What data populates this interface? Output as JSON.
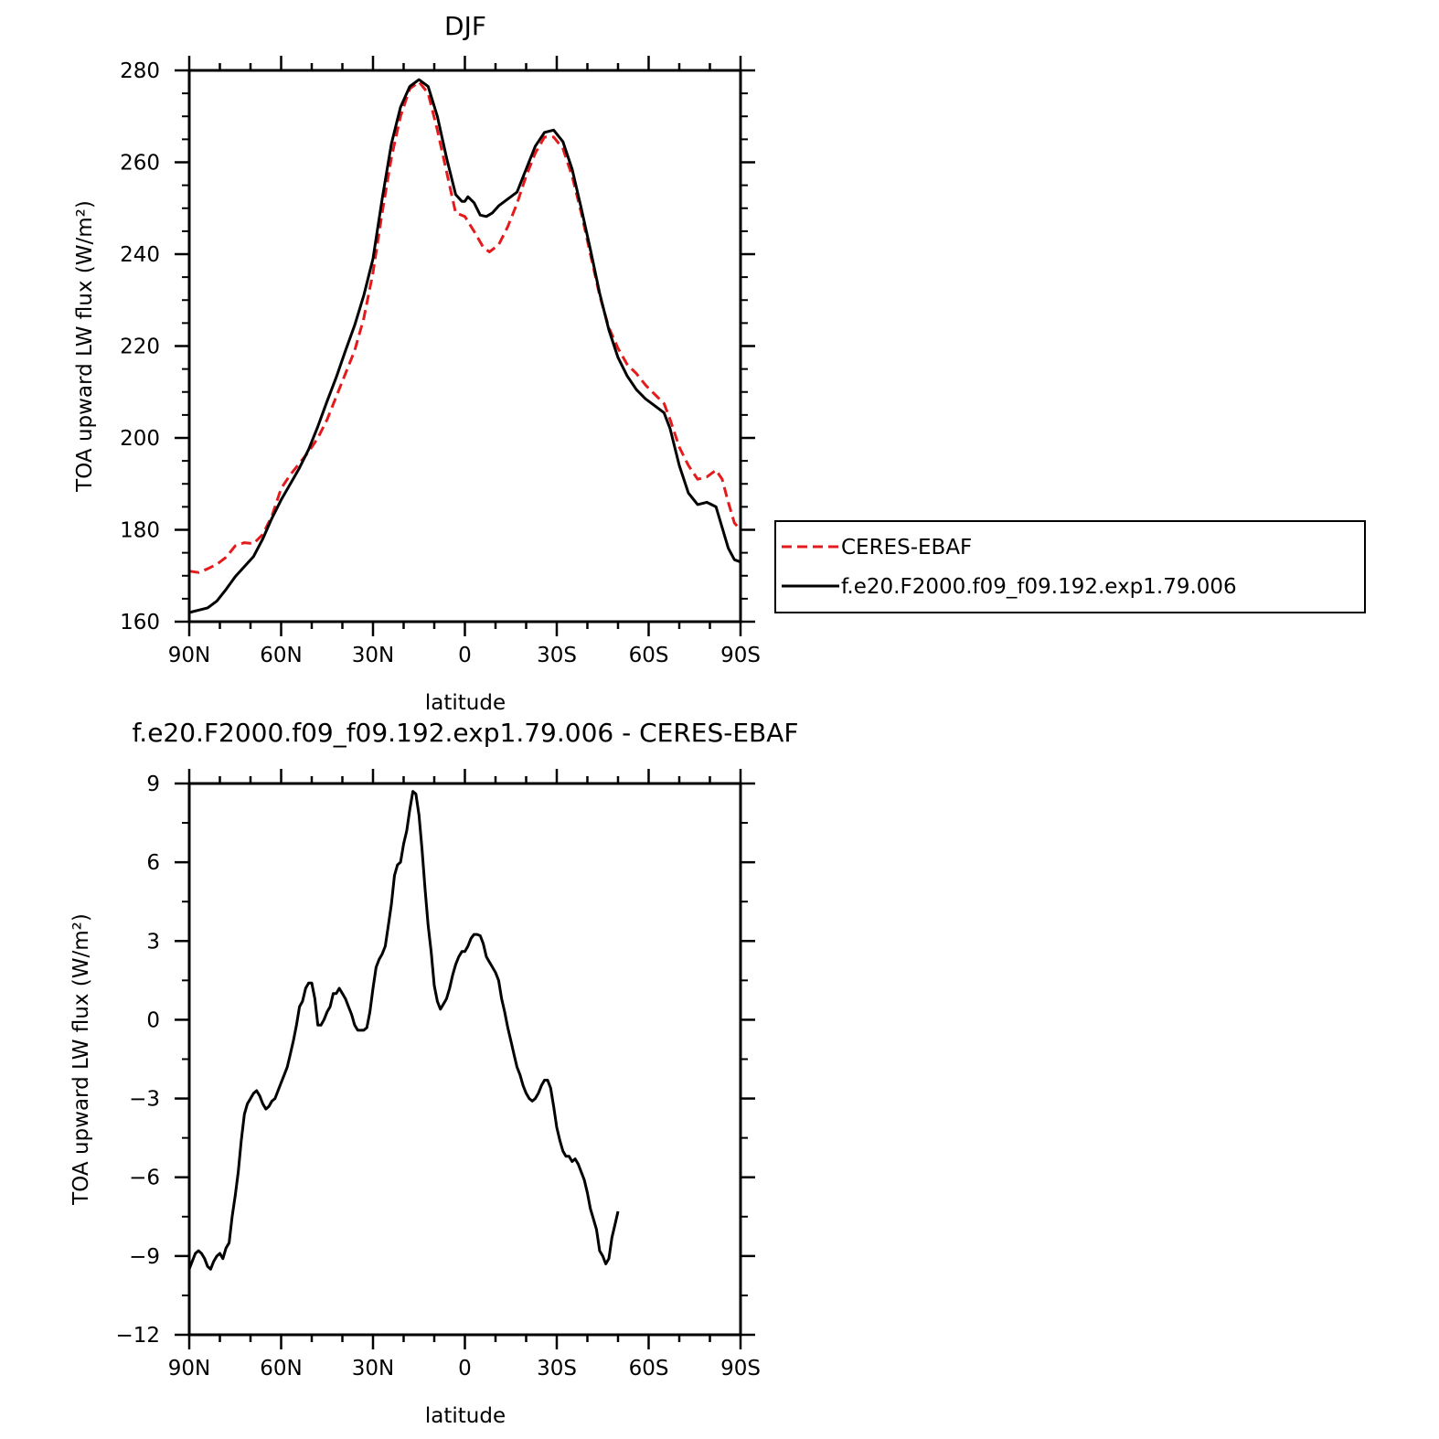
{
  "chart_data": [
    {
      "type": "line",
      "title": "DJF",
      "xlabel": "latitude",
      "ylabel": "TOA upward LW flux (W/m²)",
      "xlim": [
        90,
        -90
      ],
      "ylim": [
        160,
        280
      ],
      "x_tick_values": [
        90,
        60,
        30,
        0,
        -30,
        -60,
        -90
      ],
      "x_tick_labels": [
        "90N",
        "60N",
        "30N",
        "0",
        "30S",
        "60S",
        "90S"
      ],
      "y_ticks": [
        160,
        180,
        200,
        220,
        240,
        260,
        280
      ],
      "legend_position": "right",
      "grid": false,
      "series": [
        {
          "name": "CERES-EBAF",
          "color": "#e41a1c",
          "dash": "dashed",
          "points": [
            [
              90,
              171
            ],
            [
              87,
              170.7
            ],
            [
              84,
              171.5
            ],
            [
              81,
              172.5
            ],
            [
              78,
              174
            ],
            [
              75,
              176.5
            ],
            [
              72,
              177.2
            ],
            [
              69,
              177
            ],
            [
              66,
              179
            ],
            [
              63,
              183
            ],
            [
              60,
              189
            ],
            [
              57,
              192
            ],
            [
              54,
              194.5
            ],
            [
              51,
              197
            ],
            [
              48,
              200
            ],
            [
              45,
              204
            ],
            [
              42,
              209
            ],
            [
              39,
              214
            ],
            [
              36,
              219
            ],
            [
              33,
              226
            ],
            [
              30,
              236
            ],
            [
              27,
              249
            ],
            [
              24,
              261
            ],
            [
              21,
              270
            ],
            [
              18,
              276
            ],
            [
              15,
              277.5
            ],
            [
              12,
              275
            ],
            [
              9,
              267
            ],
            [
              6,
              258
            ],
            [
              3,
              249
            ],
            [
              0,
              248.2
            ],
            [
              -3,
              245
            ],
            [
              -6,
              241.5
            ],
            [
              -8,
              240.5
            ],
            [
              -11,
              242
            ],
            [
              -14,
              246
            ],
            [
              -17,
              251
            ],
            [
              -20,
              257
            ],
            [
              -23,
              262
            ],
            [
              -26,
              265.5
            ],
            [
              -29,
              265.5
            ],
            [
              -32,
              263
            ],
            [
              -35,
              257
            ],
            [
              -38,
              249
            ],
            [
              -41,
              240
            ],
            [
              -44,
              231
            ],
            [
              -47,
              224
            ],
            [
              -50,
              219.5
            ],
            [
              -53,
              216
            ],
            [
              -56,
              214
            ],
            [
              -59,
              211.5
            ],
            [
              -62,
              209.5
            ],
            [
              -65,
              207.5
            ],
            [
              -67,
              204
            ],
            [
              -70,
              198
            ],
            [
              -73,
              194
            ],
            [
              -76,
              191
            ],
            [
              -79,
              191.5
            ],
            [
              -82,
              193
            ],
            [
              -84,
              191
            ],
            [
              -86,
              186
            ],
            [
              -88,
              181.5
            ],
            [
              -90,
              180
            ]
          ]
        },
        {
          "name": "f.e20.F2000.f09_f09.192.exp1.79.006",
          "color": "#000000",
          "dash": "solid",
          "points": [
            [
              90,
              162
            ],
            [
              87,
              162.5
            ],
            [
              84,
              163
            ],
            [
              81,
              164.5
            ],
            [
              78,
              167
            ],
            [
              75,
              169.8
            ],
            [
              72,
              172
            ],
            [
              69,
              174.2
            ],
            [
              66,
              178
            ],
            [
              63,
              182.5
            ],
            [
              60,
              186.5
            ],
            [
              57,
              190
            ],
            [
              54,
              193.5
            ],
            [
              51,
              197.5
            ],
            [
              48,
              202.5
            ],
            [
              45,
              208
            ],
            [
              42,
              213.2
            ],
            [
              39,
              219
            ],
            [
              36,
              224.5
            ],
            [
              33,
              231
            ],
            [
              30,
              239
            ],
            [
              27,
              252
            ],
            [
              24,
              264
            ],
            [
              21,
              272
            ],
            [
              18,
              276.5
            ],
            [
              15,
              278
            ],
            [
              12,
              276.5
            ],
            [
              9,
              270
            ],
            [
              6,
              261
            ],
            [
              3,
              253
            ],
            [
              1,
              251.5
            ],
            [
              0,
              251.5
            ],
            [
              -1,
              252.5
            ],
            [
              -3,
              251.2
            ],
            [
              -5,
              248.5
            ],
            [
              -7,
              248.2
            ],
            [
              -9,
              249
            ],
            [
              -11,
              250.5
            ],
            [
              -14,
              252
            ],
            [
              -17,
              253.5
            ],
            [
              -20,
              258.5
            ],
            [
              -23,
              263.5
            ],
            [
              -26,
              266.5
            ],
            [
              -29,
              267
            ],
            [
              -32,
              264.5
            ],
            [
              -35,
              258.5
            ],
            [
              -38,
              250
            ],
            [
              -41,
              241
            ],
            [
              -44,
              231.5
            ],
            [
              -47,
              223.5
            ],
            [
              -50,
              217.5
            ],
            [
              -53,
              213.5
            ],
            [
              -56,
              210.5
            ],
            [
              -59,
              208.5
            ],
            [
              -62,
              207
            ],
            [
              -65,
              205.5
            ],
            [
              -67,
              202
            ],
            [
              -70,
              194
            ],
            [
              -73,
              188
            ],
            [
              -76,
              185.5
            ],
            [
              -79,
              186
            ],
            [
              -82,
              185
            ],
            [
              -84,
              180.5
            ],
            [
              -86,
              176
            ],
            [
              -88,
              173.5
            ],
            [
              -90,
              173
            ]
          ]
        }
      ]
    },
    {
      "type": "line",
      "title": "f.e20.F2000.f09_f09.192.exp1.79.006 - CERES-EBAF",
      "xlabel": "latitude",
      "ylabel": "TOA upward LW flux (W/m²)",
      "xlim": [
        90,
        -90
      ],
      "ylim": [
        -12,
        9
      ],
      "x_tick_values": [
        90,
        60,
        30,
        0,
        -30,
        -60,
        -90
      ],
      "x_tick_labels": [
        "90N",
        "60N",
        "30N",
        "0",
        "30S",
        "60S",
        "90S"
      ],
      "y_ticks": [
        -12,
        -9,
        -6,
        -3,
        0,
        3,
        6,
        9
      ],
      "grid": false,
      "series": [
        {
          "color": "#000000",
          "dash": "solid",
          "points": [
            [
              90,
              -9.5
            ],
            [
              89,
              -9.2
            ],
            [
              88,
              -8.9
            ],
            [
              87,
              -8.8
            ],
            [
              86,
              -8.9
            ],
            [
              85,
              -9.1
            ],
            [
              84,
              -9.4
            ],
            [
              83,
              -9.5
            ],
            [
              82,
              -9.2
            ],
            [
              81,
              -9.0
            ],
            [
              80,
              -8.9
            ],
            [
              79,
              -9.1
            ],
            [
              78,
              -8.7
            ],
            [
              77,
              -8.5
            ],
            [
              76,
              -7.5
            ],
            [
              75,
              -6.7
            ],
            [
              74,
              -5.8
            ],
            [
              73,
              -4.6
            ],
            [
              72,
              -3.6
            ],
            [
              71,
              -3.2
            ],
            [
              70,
              -3.0
            ],
            [
              69,
              -2.8
            ],
            [
              68,
              -2.7
            ],
            [
              67,
              -2.9
            ],
            [
              66,
              -3.2
            ],
            [
              65,
              -3.4
            ],
            [
              64,
              -3.3
            ],
            [
              63,
              -3.1
            ],
            [
              62,
              -3.0
            ],
            [
              61,
              -2.7
            ],
            [
              60,
              -2.4
            ],
            [
              59,
              -2.1
            ],
            [
              58,
              -1.8
            ],
            [
              57,
              -1.3
            ],
            [
              56,
              -0.8
            ],
            [
              55,
              -0.2
            ],
            [
              54,
              0.5
            ],
            [
              53,
              0.7
            ],
            [
              52,
              1.2
            ],
            [
              51,
              1.4
            ],
            [
              50,
              1.4
            ],
            [
              49,
              0.8
            ],
            [
              48,
              -0.2
            ],
            [
              47,
              -0.2
            ],
            [
              46,
              0.0
            ],
            [
              45,
              0.3
            ],
            [
              44,
              0.5
            ],
            [
              43,
              1.0
            ],
            [
              42,
              1.0
            ],
            [
              41,
              1.2
            ],
            [
              40,
              1.0
            ],
            [
              39,
              0.8
            ],
            [
              38,
              0.5
            ],
            [
              37,
              0.2
            ],
            [
              36,
              -0.2
            ],
            [
              35,
              -0.4
            ],
            [
              34,
              -0.4
            ],
            [
              33,
              -0.4
            ],
            [
              32,
              -0.3
            ],
            [
              31,
              0.3
            ],
            [
              30,
              1.2
            ],
            [
              29,
              2.0
            ],
            [
              28,
              2.3
            ],
            [
              27,
              2.5
            ],
            [
              26,
              2.8
            ],
            [
              25,
              3.6
            ],
            [
              24,
              4.4
            ],
            [
              23,
              5.5
            ],
            [
              22,
              5.9
            ],
            [
              21,
              6.0
            ],
            [
              20,
              6.7
            ],
            [
              19,
              7.2
            ],
            [
              18,
              8.0
            ],
            [
              17,
              8.7
            ],
            [
              16,
              8.6
            ],
            [
              15,
              7.8
            ],
            [
              14,
              6.5
            ],
            [
              13,
              5.0
            ],
            [
              12,
              3.6
            ],
            [
              11,
              2.6
            ],
            [
              10,
              1.3
            ],
            [
              9,
              0.7
            ],
            [
              8,
              0.4
            ],
            [
              7,
              0.6
            ],
            [
              6,
              0.8
            ],
            [
              5,
              1.2
            ],
            [
              4,
              1.7
            ],
            [
              3,
              2.1
            ],
            [
              2,
              2.4
            ],
            [
              1,
              2.6
            ],
            [
              0,
              2.6
            ],
            [
              -1,
              2.8
            ],
            [
              -2,
              3.1
            ],
            [
              -3,
              3.25
            ],
            [
              -4,
              3.25
            ],
            [
              -5,
              3.2
            ],
            [
              -6,
              2.9
            ],
            [
              -7,
              2.4
            ],
            [
              -8,
              2.2
            ],
            [
              -9,
              2.0
            ],
            [
              -10,
              1.8
            ],
            [
              -11,
              1.5
            ],
            [
              -12,
              0.8
            ],
            [
              -13,
              0.3
            ],
            [
              -14,
              -0.3
            ],
            [
              -15,
              -0.8
            ],
            [
              -16,
              -1.3
            ],
            [
              -17,
              -1.8
            ],
            [
              -18,
              -2.1
            ],
            [
              -19,
              -2.5
            ],
            [
              -20,
              -2.8
            ],
            [
              -21,
              -3.0
            ],
            [
              -22,
              -3.1
            ],
            [
              -23,
              -3.0
            ],
            [
              -24,
              -2.8
            ],
            [
              -25,
              -2.5
            ],
            [
              -26,
              -2.3
            ],
            [
              -27,
              -2.3
            ],
            [
              -28,
              -2.6
            ],
            [
              -29,
              -3.3
            ],
            [
              -30,
              -4.1
            ],
            [
              -31,
              -4.6
            ],
            [
              -32,
              -5.0
            ],
            [
              -33,
              -5.2
            ],
            [
              -34,
              -5.2
            ],
            [
              -35,
              -5.4
            ],
            [
              -36,
              -5.3
            ],
            [
              -37,
              -5.5
            ],
            [
              -38,
              -5.8
            ],
            [
              -39,
              -6.1
            ],
            [
              -40,
              -6.6
            ],
            [
              -41,
              -7.2
            ],
            [
              -42,
              -7.6
            ],
            [
              -43,
              -8.0
            ],
            [
              -44,
              -8.8
            ],
            [
              -45,
              -9.0
            ],
            [
              -46,
              -9.3
            ],
            [
              -47,
              -9.1
            ],
            [
              -48,
              -8.3
            ],
            [
              -49,
              -7.8
            ],
            [
              -50,
              -7.3
            ]
          ]
        }
      ]
    }
  ],
  "legend": {
    "items": [
      {
        "label": "CERES-EBAF",
        "color": "#e41a1c",
        "dash": "dashed"
      },
      {
        "label": "f.e20.F2000.f09_f09.192.exp1.79.006",
        "color": "#000000",
        "dash": "solid"
      }
    ]
  }
}
